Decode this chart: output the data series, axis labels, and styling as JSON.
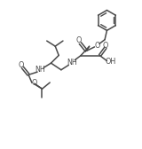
{
  "background_color": "#ffffff",
  "line_color": "#4a4a4a",
  "line_width": 1.1,
  "figsize": [
    1.6,
    1.68
  ],
  "dpi": 100,
  "xlim": [
    0,
    10
  ],
  "ylim": [
    0,
    10.5
  ]
}
